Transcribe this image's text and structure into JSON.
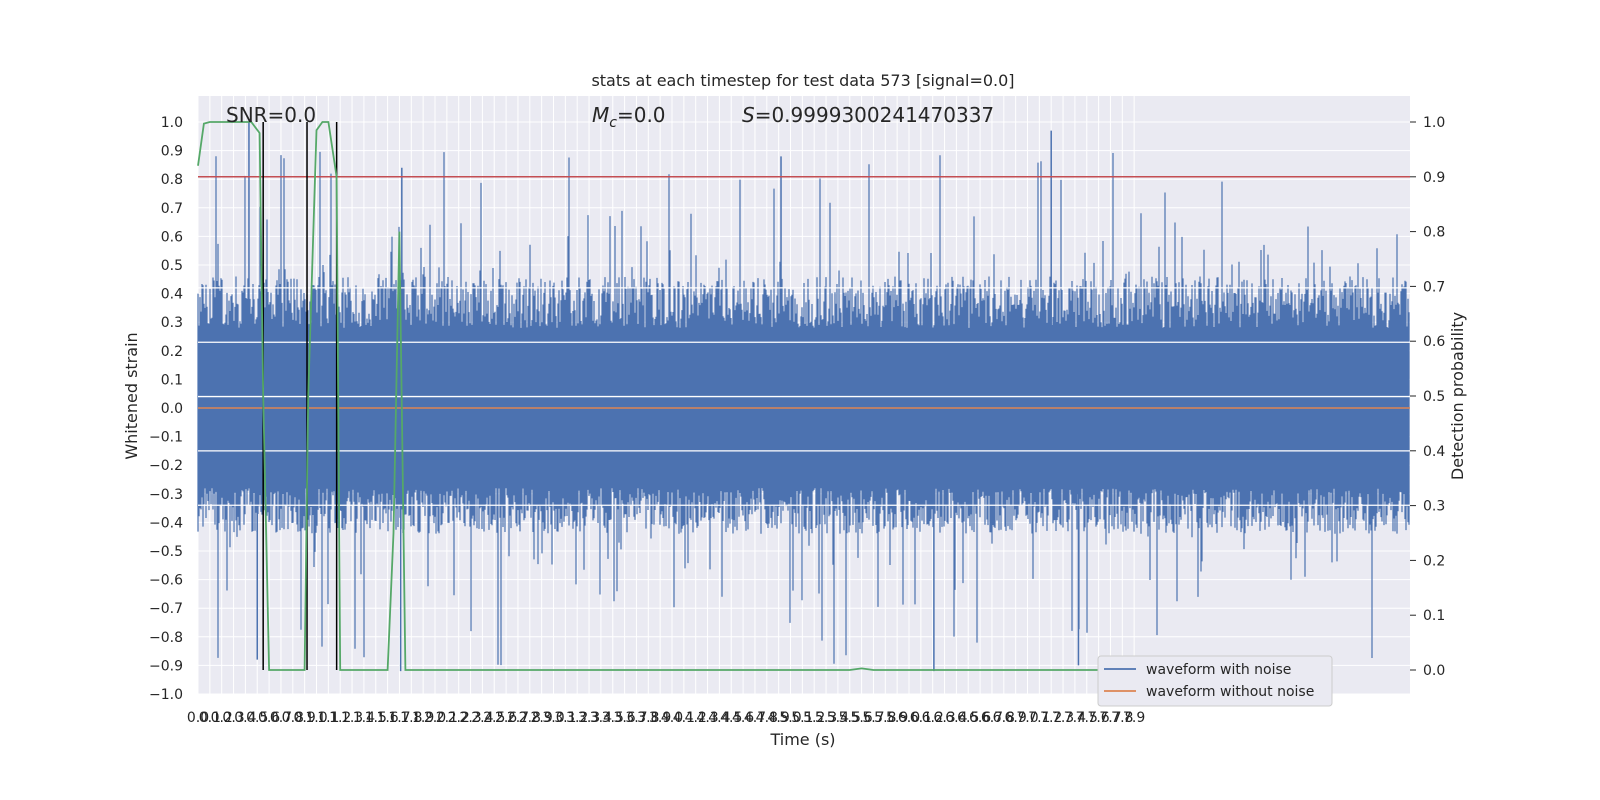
{
  "chart_data": {
    "type": "line",
    "title": "stats at each timestep for test data 573 [signal=0.0]",
    "xlabel": "Time (s)",
    "ylabel": "Whitened strain",
    "y2label": "Detection probability",
    "xlim": [
      0.0,
      7.95
    ],
    "ylim": [
      -1.0,
      1.0
    ],
    "y2lim": [
      0.0,
      1.0
    ],
    "grid": true,
    "legend_placement": "lower-right",
    "annotations": {
      "snr": "SNR=0.0",
      "mc_symbol": "M",
      "mc_sub": "c",
      "mc_value": "=0.0",
      "s_symbol": "S",
      "s_value": "=0.9999300241470337"
    },
    "x_tick_labels": [
      "0.0",
      "0.1",
      "0.2",
      "0.3",
      "0.4",
      "0.5",
      "0.6",
      "0.7",
      "0.8",
      "0.9",
      "1.0",
      "1.1",
      "1.2",
      "1.3",
      "1.4",
      "1.5",
      "1.6",
      "1.7",
      "1.8",
      "1.9",
      "2.0",
      "2.1",
      "2.2",
      "2.3",
      "2.4",
      "2.5",
      "2.6",
      "2.7",
      "2.8",
      "2.9",
      "3.0",
      "3.1",
      "3.2",
      "3.3",
      "3.4",
      "3.5",
      "3.6",
      "3.7",
      "3.8",
      "3.9",
      "4.0",
      "4.1",
      "4.2",
      "4.3",
      "4.4",
      "4.5",
      "4.6",
      "4.7",
      "4.8",
      "4.9",
      "5.0",
      "5.1",
      "5.2",
      "5.3",
      "5.4",
      "5.5",
      "5.6",
      "5.7",
      "5.8",
      "5.9",
      "6.0",
      "6.1",
      "6.2",
      "6.3",
      "6.4",
      "6.5",
      "6.6",
      "6.7",
      "6.8",
      "6.9",
      "7.0",
      "7.1",
      "7.2",
      "7.3",
      "7.4",
      "7.5",
      "7.6",
      "7.7",
      "7.8",
      "7.9"
    ],
    "y_tick_labels": [
      "1.0",
      "0.9",
      "0.8",
      "0.7",
      "0.6",
      "0.5",
      "0.4",
      "0.3",
      "0.2",
      "0.1",
      "0.0",
      "−0.1",
      "−0.2",
      "−0.3",
      "−0.4",
      "−0.5",
      "−0.6",
      "−0.7",
      "−0.8",
      "−0.9",
      "−1.0"
    ],
    "y2_tick_labels": [
      "1.0",
      "0.9",
      "0.8",
      "0.7",
      "0.6",
      "0.5",
      "0.4",
      "0.3",
      "0.2",
      "0.1",
      "0.0"
    ],
    "threshold": 0.9,
    "vertical_lines_x": [
      0.55,
      0.92,
      1.17
    ],
    "series": [
      {
        "name": "waveform with noise",
        "color": "#4c72b0",
        "description": "noise around 0 with amplitude ~0.4, spikes to ~±0.9",
        "values": []
      },
      {
        "name": "waveform without noise",
        "color": "#dd8452",
        "values": [
          0.0,
          0.0
        ]
      },
      {
        "color": "#55a868",
        "axis": "right",
        "points": [
          [
            0.0,
            0.92
          ],
          [
            0.05,
            0.997
          ],
          [
            0.1,
            1.0
          ],
          [
            0.45,
            1.0
          ],
          [
            0.52,
            0.98
          ],
          [
            0.55,
            0.5
          ],
          [
            0.6,
            0.0
          ],
          [
            0.9,
            0.0
          ],
          [
            0.93,
            0.5
          ],
          [
            1.0,
            0.985
          ],
          [
            1.05,
            1.0
          ],
          [
            1.1,
            1.0
          ],
          [
            1.17,
            0.9
          ],
          [
            1.2,
            0.0
          ],
          [
            1.6,
            0.0
          ],
          [
            1.65,
            0.25
          ],
          [
            1.7,
            0.8
          ],
          [
            1.75,
            0.0
          ],
          [
            1.8,
            0.0
          ],
          [
            5.5,
            0.0
          ],
          [
            5.6,
            0.003
          ],
          [
            5.7,
            0.0
          ],
          [
            7.95,
            0.0
          ]
        ]
      }
    ],
    "colors": {
      "axes_bg": "#eaeaf2",
      "grid": "#ffffff",
      "threshold_line": "#c44e52",
      "vline": "#000000",
      "noise": "#4c72b0",
      "clean": "#dd8452",
      "prob": "#55a868"
    }
  }
}
